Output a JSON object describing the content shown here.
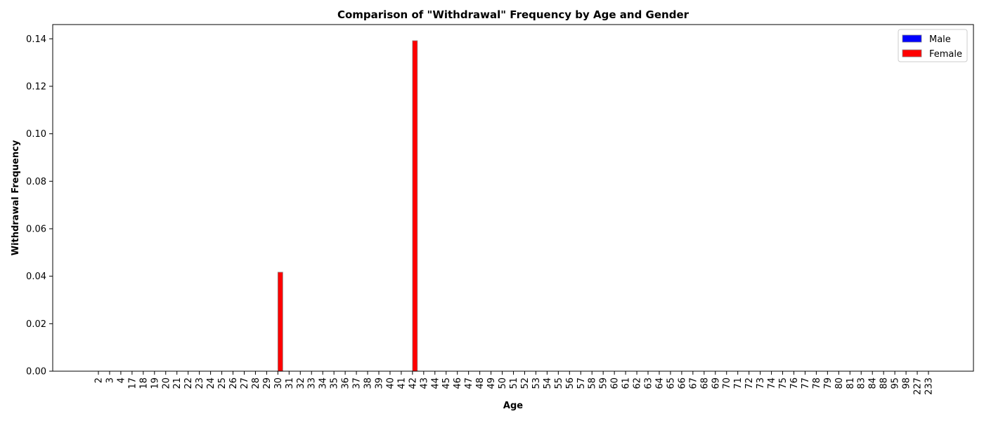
{
  "chart_data": {
    "type": "bar",
    "title": "Comparison of \"Withdrawal\" Frequency by Age and Gender",
    "xlabel": "Age",
    "ylabel": "Withdrawal Frequency",
    "ylim": [
      0,
      0.146
    ],
    "yticks": [
      "0.00",
      "0.02",
      "0.04",
      "0.06",
      "0.08",
      "0.10",
      "0.12",
      "0.14"
    ],
    "legend_position": "top-right",
    "grid": false,
    "categories": [
      "2",
      "3",
      "4",
      "17",
      "18",
      "19",
      "20",
      "21",
      "22",
      "23",
      "24",
      "25",
      "26",
      "27",
      "28",
      "29",
      "30",
      "31",
      "32",
      "33",
      "34",
      "35",
      "36",
      "37",
      "38",
      "39",
      "40",
      "41",
      "42",
      "43",
      "44",
      "45",
      "46",
      "47",
      "48",
      "49",
      "50",
      "51",
      "52",
      "53",
      "54",
      "55",
      "56",
      "57",
      "58",
      "59",
      "60",
      "61",
      "62",
      "63",
      "64",
      "65",
      "66",
      "67",
      "68",
      "69",
      "70",
      "71",
      "72",
      "73",
      "74",
      "75",
      "76",
      "77",
      "78",
      "79",
      "80",
      "81",
      "83",
      "84",
      "88",
      "95",
      "98",
      "227",
      "233"
    ],
    "series": [
      {
        "name": "Male",
        "color": "#0000ff",
        "values": [
          0,
          0,
          0,
          0,
          0,
          0,
          0,
          0,
          0,
          0,
          0,
          0,
          0,
          0,
          0,
          0,
          0,
          0,
          0,
          0,
          0,
          0,
          0,
          0,
          0,
          0,
          0,
          0,
          0,
          0,
          0,
          0,
          0,
          0,
          0,
          0,
          0,
          0,
          0,
          0,
          0,
          0,
          0,
          0,
          0,
          0,
          0,
          0,
          0,
          0,
          0,
          0,
          0,
          0,
          0,
          0,
          0,
          0,
          0,
          0,
          0,
          0,
          0,
          0,
          0,
          0,
          0,
          0,
          0,
          0,
          0,
          0,
          0,
          0,
          0
        ]
      },
      {
        "name": "Female",
        "color": "#ff0000",
        "values": [
          0,
          0,
          0,
          0,
          0,
          0,
          0,
          0,
          0,
          0,
          0,
          0,
          0,
          0,
          0,
          0,
          0.0417,
          0,
          0,
          0,
          0,
          0,
          0,
          0,
          0,
          0,
          0,
          0,
          0.1392,
          0,
          0,
          0,
          0,
          0,
          0,
          0,
          0,
          0,
          0,
          0,
          0,
          0,
          0,
          0,
          0,
          0,
          0,
          0,
          0,
          0,
          0,
          0,
          0,
          0,
          0,
          0,
          0,
          0,
          0,
          0,
          0,
          0,
          0,
          0,
          0,
          0,
          0,
          0,
          0,
          0,
          0,
          0,
          0,
          0,
          0
        ]
      }
    ]
  }
}
